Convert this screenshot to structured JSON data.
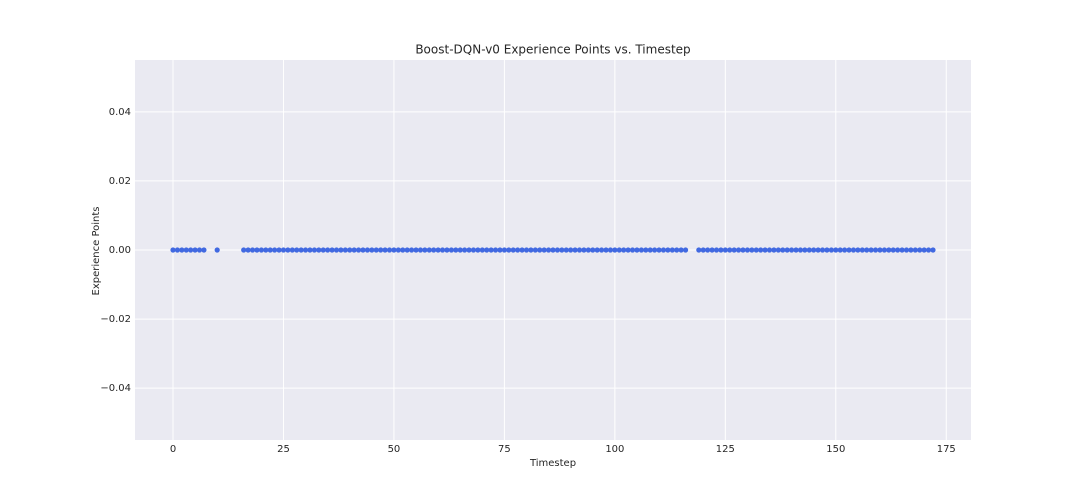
{
  "chart_data": {
    "type": "scatter",
    "title": "Boost-DQN-v0 Experience Points vs. Timestep",
    "x_label": "Timestep",
    "y_label": "Experience Points",
    "color": "#4169e1",
    "grid": true,
    "xlim": [
      -8.6,
      180.6
    ],
    "ylim": [
      -0.055,
      0.055
    ],
    "xticks": [
      0,
      25,
      50,
      75,
      100,
      125,
      150,
      175
    ],
    "yticks": [
      {
        "value": -0.04,
        "label": "−0.04"
      },
      {
        "value": -0.02,
        "label": "−0.02"
      },
      {
        "value": 0,
        "label": "0.00"
      },
      {
        "value": 0.02,
        "label": "0.02"
      },
      {
        "value": 0.04,
        "label": "0.04"
      }
    ],
    "x": [
      0,
      1,
      2,
      3,
      4,
      5,
      6,
      7,
      10,
      16,
      17,
      18,
      19,
      20,
      21,
      22,
      23,
      24,
      25,
      26,
      27,
      28,
      29,
      30,
      31,
      32,
      33,
      34,
      35,
      36,
      37,
      38,
      39,
      40,
      41,
      42,
      43,
      44,
      45,
      46,
      47,
      48,
      49,
      50,
      51,
      52,
      53,
      54,
      55,
      56,
      57,
      58,
      59,
      60,
      61,
      62,
      63,
      64,
      65,
      66,
      67,
      68,
      69,
      70,
      71,
      72,
      73,
      74,
      75,
      76,
      77,
      78,
      79,
      80,
      81,
      82,
      83,
      84,
      85,
      86,
      87,
      88,
      89,
      90,
      91,
      92,
      93,
      94,
      95,
      96,
      97,
      98,
      99,
      100,
      101,
      102,
      103,
      104,
      105,
      106,
      107,
      108,
      109,
      110,
      111,
      112,
      113,
      114,
      115,
      116,
      119,
      120,
      121,
      122,
      123,
      124,
      125,
      126,
      127,
      128,
      129,
      130,
      131,
      132,
      133,
      134,
      135,
      136,
      137,
      138,
      139,
      140,
      141,
      142,
      143,
      144,
      145,
      146,
      147,
      148,
      149,
      150,
      151,
      152,
      153,
      154,
      155,
      156,
      157,
      158,
      159,
      160,
      161,
      162,
      163,
      164,
      165,
      166,
      167,
      168,
      169,
      170,
      171,
      172
    ],
    "values": [
      0,
      0,
      0,
      0,
      0,
      0,
      0,
      0,
      0,
      0,
      0,
      0,
      0,
      0,
      0,
      0,
      0,
      0,
      0,
      0,
      0,
      0,
      0,
      0,
      0,
      0,
      0,
      0,
      0,
      0,
      0,
      0,
      0,
      0,
      0,
      0,
      0,
      0,
      0,
      0,
      0,
      0,
      0,
      0,
      0,
      0,
      0,
      0,
      0,
      0,
      0,
      0,
      0,
      0,
      0,
      0,
      0,
      0,
      0,
      0,
      0,
      0,
      0,
      0,
      0,
      0,
      0,
      0,
      0,
      0,
      0,
      0,
      0,
      0,
      0,
      0,
      0,
      0,
      0,
      0,
      0,
      0,
      0,
      0,
      0,
      0,
      0,
      0,
      0,
      0,
      0,
      0,
      0,
      0,
      0,
      0,
      0,
      0,
      0,
      0,
      0,
      0,
      0,
      0,
      0,
      0,
      0,
      0,
      0,
      0,
      0,
      0,
      0,
      0,
      0,
      0,
      0,
      0,
      0,
      0,
      0,
      0,
      0,
      0,
      0,
      0,
      0,
      0,
      0,
      0,
      0,
      0,
      0,
      0,
      0,
      0,
      0,
      0,
      0,
      0,
      0,
      0,
      0,
      0,
      0,
      0,
      0,
      0,
      0,
      0,
      0,
      0,
      0,
      0,
      0,
      0,
      0,
      0,
      0,
      0,
      0,
      0,
      0,
      0
    ]
  }
}
